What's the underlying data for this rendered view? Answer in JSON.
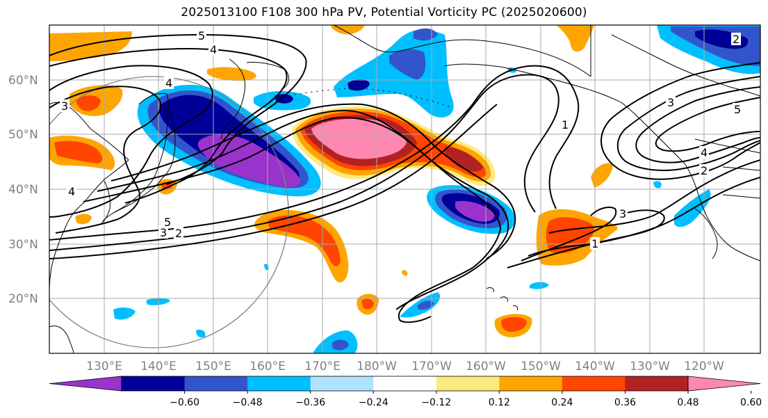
{
  "title": "2025013100 F108 300 hPa PV, Potential Vorticity PC (2025020600)",
  "lat_labels": [
    "60°N",
    "50°N",
    "40°N",
    "30°N",
    "20°N"
  ],
  "lon_labels": [
    "130°E",
    "140°E",
    "150°E",
    "160°E",
    "170°E",
    "180°W",
    "170°W",
    "160°W",
    "150°W",
    "140°W",
    "130°W",
    "120°W"
  ],
  "colorbar": {
    "colors": [
      "#9933cc",
      "#000099",
      "#3355cc",
      "#00bfff",
      "#b0e2ff",
      "#ffffff",
      "#ffea80",
      "#ffa500",
      "#ff4500",
      "#b22222",
      "#ff88b0"
    ],
    "ticks": [
      "−0.60",
      "−0.48",
      "−0.36",
      "−0.24",
      "−0.12",
      "0.12",
      "0.24",
      "0.36",
      "0.48",
      "0.60"
    ]
  },
  "contour_labels": [
    "5",
    "4",
    "4",
    "3",
    "2",
    "4",
    "5",
    "3",
    "2",
    "1",
    "3",
    "5",
    "4",
    "2",
    "3",
    "1"
  ],
  "colors": {
    "grid": "#aaaaaa",
    "coast": "#000000",
    "contour": "#000000",
    "circle": "#808080"
  }
}
